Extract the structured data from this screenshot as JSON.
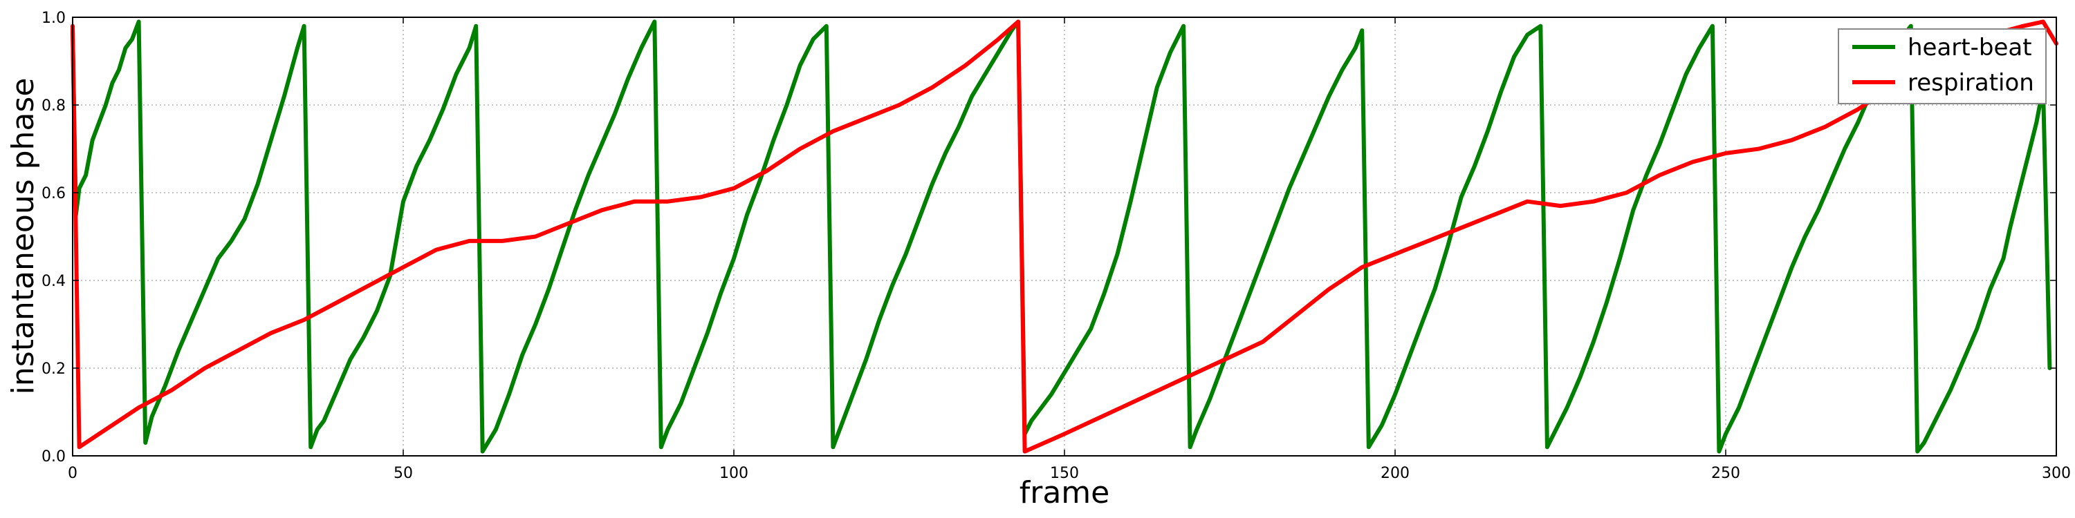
{
  "chart_data": {
    "type": "line",
    "xlabel": "frame",
    "ylabel": "instantaneous phase",
    "xlim": [
      0,
      300
    ],
    "ylim": [
      0,
      1
    ],
    "xticks": [
      0,
      50,
      100,
      150,
      200,
      250,
      300
    ],
    "yticks": [
      0.0,
      0.2,
      0.4,
      0.6,
      0.8,
      1.0
    ],
    "xtick_labels": [
      "0",
      "50",
      "100",
      "150",
      "200",
      "250",
      "300"
    ],
    "ytick_labels": [
      "0.0",
      "0.2",
      "0.4",
      "0.6",
      "0.8",
      "1.0"
    ],
    "grid": true,
    "legend_position": "top-right",
    "series": [
      {
        "name": "heart-beat",
        "color": "#008000",
        "points": [
          [
            0,
            0.97
          ],
          [
            0.5,
            0.55
          ],
          [
            1,
            0.61
          ],
          [
            2,
            0.64
          ],
          [
            3,
            0.72
          ],
          [
            4,
            0.76
          ],
          [
            5,
            0.8
          ],
          [
            6,
            0.85
          ],
          [
            7,
            0.88
          ],
          [
            8,
            0.93
          ],
          [
            9,
            0.95
          ],
          [
            10,
            0.99
          ],
          [
            11,
            0.03
          ],
          [
            12,
            0.09
          ],
          [
            14,
            0.16
          ],
          [
            16,
            0.24
          ],
          [
            18,
            0.31
          ],
          [
            20,
            0.38
          ],
          [
            22,
            0.45
          ],
          [
            24,
            0.49
          ],
          [
            26,
            0.54
          ],
          [
            28,
            0.62
          ],
          [
            30,
            0.72
          ],
          [
            32,
            0.82
          ],
          [
            34,
            0.93
          ],
          [
            35,
            0.98
          ],
          [
            36,
            0.02
          ],
          [
            37,
            0.06
          ],
          [
            38,
            0.08
          ],
          [
            40,
            0.15
          ],
          [
            42,
            0.22
          ],
          [
            44,
            0.27
          ],
          [
            46,
            0.33
          ],
          [
            48,
            0.41
          ],
          [
            50,
            0.58
          ],
          [
            52,
            0.66
          ],
          [
            54,
            0.72
          ],
          [
            56,
            0.79
          ],
          [
            58,
            0.87
          ],
          [
            60,
            0.93
          ],
          [
            61,
            0.98
          ],
          [
            62,
            0.01
          ],
          [
            64,
            0.06
          ],
          [
            66,
            0.14
          ],
          [
            68,
            0.23
          ],
          [
            70,
            0.3
          ],
          [
            72,
            0.38
          ],
          [
            74,
            0.47
          ],
          [
            76,
            0.56
          ],
          [
            78,
            0.64
          ],
          [
            80,
            0.71
          ],
          [
            82,
            0.78
          ],
          [
            84,
            0.86
          ],
          [
            86,
            0.93
          ],
          [
            88,
            0.99
          ],
          [
            89,
            0.02
          ],
          [
            90,
            0.06
          ],
          [
            92,
            0.12
          ],
          [
            94,
            0.2
          ],
          [
            96,
            0.28
          ],
          [
            98,
            0.37
          ],
          [
            100,
            0.45
          ],
          [
            102,
            0.55
          ],
          [
            104,
            0.63
          ],
          [
            106,
            0.72
          ],
          [
            108,
            0.8
          ],
          [
            110,
            0.89
          ],
          [
            112,
            0.95
          ],
          [
            114,
            0.98
          ],
          [
            115,
            0.02
          ],
          [
            116,
            0.06
          ],
          [
            118,
            0.14
          ],
          [
            120,
            0.22
          ],
          [
            122,
            0.31
          ],
          [
            124,
            0.39
          ],
          [
            126,
            0.46
          ],
          [
            128,
            0.54
          ],
          [
            130,
            0.62
          ],
          [
            132,
            0.69
          ],
          [
            134,
            0.75
          ],
          [
            136,
            0.82
          ],
          [
            138,
            0.87
          ],
          [
            140,
            0.92
          ],
          [
            142,
            0.97
          ],
          [
            143,
            0.99
          ],
          [
            144,
            0.05
          ],
          [
            145,
            0.08
          ],
          [
            146,
            0.1
          ],
          [
            148,
            0.14
          ],
          [
            150,
            0.19
          ],
          [
            152,
            0.24
          ],
          [
            154,
            0.29
          ],
          [
            156,
            0.37
          ],
          [
            158,
            0.46
          ],
          [
            160,
            0.58
          ],
          [
            162,
            0.71
          ],
          [
            164,
            0.84
          ],
          [
            166,
            0.92
          ],
          [
            168,
            0.98
          ],
          [
            169,
            0.02
          ],
          [
            170,
            0.06
          ],
          [
            172,
            0.13
          ],
          [
            174,
            0.21
          ],
          [
            176,
            0.29
          ],
          [
            178,
            0.37
          ],
          [
            180,
            0.45
          ],
          [
            182,
            0.53
          ],
          [
            184,
            0.61
          ],
          [
            186,
            0.68
          ],
          [
            188,
            0.75
          ],
          [
            190,
            0.82
          ],
          [
            192,
            0.88
          ],
          [
            194,
            0.93
          ],
          [
            195,
            0.97
          ],
          [
            196,
            0.02
          ],
          [
            198,
            0.07
          ],
          [
            200,
            0.14
          ],
          [
            202,
            0.22
          ],
          [
            204,
            0.3
          ],
          [
            206,
            0.38
          ],
          [
            208,
            0.48
          ],
          [
            210,
            0.59
          ],
          [
            212,
            0.66
          ],
          [
            214,
            0.74
          ],
          [
            216,
            0.83
          ],
          [
            218,
            0.91
          ],
          [
            220,
            0.96
          ],
          [
            222,
            0.98
          ],
          [
            223,
            0.02
          ],
          [
            224,
            0.05
          ],
          [
            226,
            0.11
          ],
          [
            228,
            0.18
          ],
          [
            230,
            0.26
          ],
          [
            232,
            0.35
          ],
          [
            234,
            0.45
          ],
          [
            236,
            0.56
          ],
          [
            238,
            0.64
          ],
          [
            240,
            0.71
          ],
          [
            242,
            0.79
          ],
          [
            244,
            0.87
          ],
          [
            246,
            0.93
          ],
          [
            248,
            0.98
          ],
          [
            249,
            0.01
          ],
          [
            250,
            0.05
          ],
          [
            252,
            0.11
          ],
          [
            254,
            0.19
          ],
          [
            256,
            0.27
          ],
          [
            258,
            0.35
          ],
          [
            260,
            0.43
          ],
          [
            262,
            0.5
          ],
          [
            264,
            0.56
          ],
          [
            266,
            0.63
          ],
          [
            268,
            0.7
          ],
          [
            270,
            0.76
          ],
          [
            272,
            0.83
          ],
          [
            274,
            0.89
          ],
          [
            276,
            0.94
          ],
          [
            278,
            0.98
          ],
          [
            279,
            0.01
          ],
          [
            280,
            0.03
          ],
          [
            282,
            0.09
          ],
          [
            284,
            0.15
          ],
          [
            286,
            0.22
          ],
          [
            288,
            0.29
          ],
          [
            290,
            0.38
          ],
          [
            292,
            0.45
          ],
          [
            293,
            0.52
          ],
          [
            294,
            0.58
          ],
          [
            295,
            0.64
          ],
          [
            296,
            0.7
          ],
          [
            297,
            0.76
          ],
          [
            298,
            0.84
          ],
          [
            299,
            0.2
          ]
        ]
      },
      {
        "name": "respiration",
        "color": "#ff0000",
        "points": [
          [
            0,
            0.98
          ],
          [
            1,
            0.02
          ],
          [
            3,
            0.04
          ],
          [
            5,
            0.06
          ],
          [
            7,
            0.08
          ],
          [
            10,
            0.11
          ],
          [
            15,
            0.15
          ],
          [
            20,
            0.2
          ],
          [
            25,
            0.24
          ],
          [
            30,
            0.28
          ],
          [
            35,
            0.31
          ],
          [
            40,
            0.35
          ],
          [
            45,
            0.39
          ],
          [
            50,
            0.43
          ],
          [
            55,
            0.47
          ],
          [
            60,
            0.49
          ],
          [
            65,
            0.49
          ],
          [
            70,
            0.5
          ],
          [
            75,
            0.53
          ],
          [
            80,
            0.56
          ],
          [
            85,
            0.58
          ],
          [
            90,
            0.58
          ],
          [
            95,
            0.59
          ],
          [
            100,
            0.61
          ],
          [
            105,
            0.65
          ],
          [
            110,
            0.7
          ],
          [
            115,
            0.74
          ],
          [
            120,
            0.77
          ],
          [
            125,
            0.8
          ],
          [
            130,
            0.84
          ],
          [
            135,
            0.89
          ],
          [
            140,
            0.95
          ],
          [
            143,
            0.99
          ],
          [
            144,
            0.01
          ],
          [
            150,
            0.05
          ],
          [
            160,
            0.12
          ],
          [
            170,
            0.19
          ],
          [
            180,
            0.26
          ],
          [
            185,
            0.32
          ],
          [
            190,
            0.38
          ],
          [
            195,
            0.43
          ],
          [
            200,
            0.46
          ],
          [
            205,
            0.49
          ],
          [
            210,
            0.52
          ],
          [
            215,
            0.55
          ],
          [
            220,
            0.58
          ],
          [
            225,
            0.57
          ],
          [
            230,
            0.58
          ],
          [
            235,
            0.6
          ],
          [
            240,
            0.64
          ],
          [
            245,
            0.67
          ],
          [
            250,
            0.69
          ],
          [
            255,
            0.7
          ],
          [
            260,
            0.72
          ],
          [
            265,
            0.75
          ],
          [
            270,
            0.79
          ],
          [
            275,
            0.84
          ],
          [
            280,
            0.88
          ],
          [
            285,
            0.92
          ],
          [
            290,
            0.96
          ],
          [
            295,
            0.98
          ],
          [
            298,
            0.99
          ],
          [
            300,
            0.94
          ]
        ]
      }
    ]
  }
}
